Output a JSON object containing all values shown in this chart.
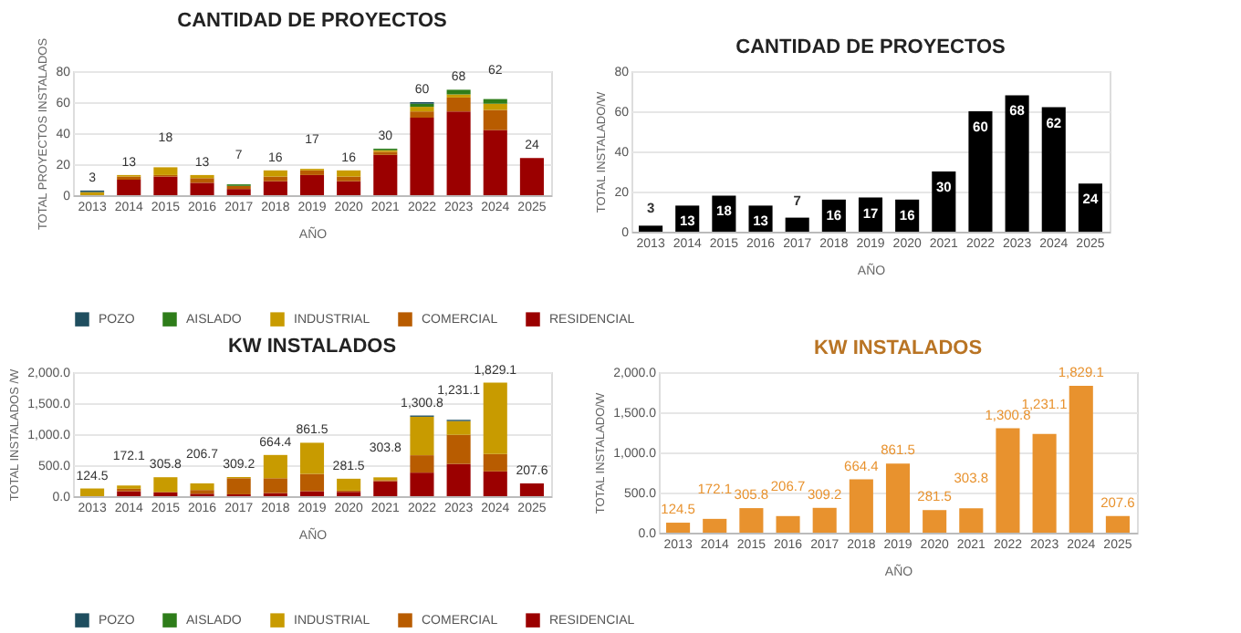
{
  "chart_data": [
    {
      "type": "bar",
      "title": "CANTIDAD DE PROYECTOS",
      "xlabel": "AÑO",
      "ylabel": "TOTAL PROYECTOS INSTALADOS",
      "stacked": true,
      "legend": "bottom",
      "grid": "y",
      "categories": [
        "2013",
        "2014",
        "2015",
        "2016",
        "2017",
        "2018",
        "2019",
        "2020",
        "2021",
        "2022",
        "2023",
        "2024",
        "2025"
      ],
      "ylim": [
        0,
        80
      ],
      "yticks": [
        0,
        20,
        40,
        60,
        80
      ],
      "series": [
        {
          "name": "RESIDENCIAL",
          "color": "#9b0000",
          "values": [
            null,
            10,
            12,
            8,
            4,
            9,
            13,
            9,
            26,
            50,
            54,
            42,
            24
          ]
        },
        {
          "name": "COMERCIAL",
          "color": "#b85c00",
          "values": [
            null,
            2,
            1,
            3,
            2,
            3,
            3,
            3,
            2,
            4,
            9,
            13,
            null
          ]
        },
        {
          "name": "INDUSTRIAL",
          "color": "#c89b00",
          "values": [
            2,
            1,
            5,
            2,
            null,
            4,
            1,
            4,
            1,
            3,
            2,
            4,
            null
          ]
        },
        {
          "name": "AISLADO",
          "color": "#2e7d1a",
          "values": [
            null,
            null,
            null,
            null,
            1,
            null,
            null,
            null,
            1,
            2,
            3,
            3,
            null
          ]
        },
        {
          "name": "POZO",
          "color": "#1f4e5f",
          "values": [
            1,
            null,
            null,
            null,
            null,
            null,
            null,
            null,
            null,
            1,
            null,
            null,
            null
          ]
        }
      ],
      "totals": [
        "3",
        "13",
        "18",
        "13",
        "7",
        "16",
        "17",
        "16",
        "30",
        "60",
        "68",
        "62",
        "24"
      ]
    },
    {
      "type": "bar",
      "title": "CANTIDAD DE PROYECTOS",
      "xlabel": "AÑO",
      "ylabel": "TOTAL INSTALADO/W",
      "grid": "y",
      "data_labels": true,
      "color": "#000000",
      "categories": [
        "2013",
        "2014",
        "2015",
        "2016",
        "2017",
        "2018",
        "2019",
        "2020",
        "2021",
        "2022",
        "2023",
        "2024",
        "2025"
      ],
      "ylim": [
        0,
        80
      ],
      "yticks": [
        0,
        20,
        40,
        60,
        80
      ],
      "values": [
        3,
        13,
        18,
        13,
        7,
        16,
        17,
        16,
        30,
        60,
        68,
        62,
        24
      ]
    },
    {
      "type": "bar",
      "title": "KW INSTALADOS",
      "xlabel": "AÑO",
      "ylabel": "TOTAL INSTALADOS /W",
      "stacked": true,
      "legend": "bottom",
      "grid": "y",
      "categories": [
        "2013",
        "2014",
        "2015",
        "2016",
        "2017",
        "2018",
        "2019",
        "2020",
        "2021",
        "2022",
        "2023",
        "2024",
        "2025"
      ],
      "ylim": [
        0,
        2000
      ],
      "yticks": [
        {
          "value": 0,
          "label": "0.0"
        },
        {
          "value": 500,
          "label": "500.0"
        },
        {
          "value": 1000,
          "label": "1,000.0"
        },
        {
          "value": 1500,
          "label": "1,500.0"
        },
        {
          "value": 2000,
          "label": "2,000.0"
        }
      ],
      "series": [
        {
          "name": "RESIDENCIAL",
          "color": "#9b0000",
          "values": [
            null,
            80,
            60,
            40,
            30,
            50,
            80,
            70,
            240,
            380,
            520,
            400,
            207.6
          ]
        },
        {
          "name": "COMERCIAL",
          "color": "#b85c00",
          "values": [
            null,
            40,
            10,
            60,
            260,
            240,
            280,
            20,
            20,
            280,
            470,
            280,
            null
          ]
        },
        {
          "name": "INDUSTRIAL",
          "color": "#c89b00",
          "values": [
            124.5,
            52.1,
            235.8,
            106.7,
            19.2,
            374.4,
            501.5,
            191.5,
            43.8,
            620.8,
            221.1,
            1149.1,
            null
          ]
        },
        {
          "name": "AISLADO",
          "color": "#2e7d1a",
          "values": [
            null,
            null,
            null,
            null,
            null,
            null,
            null,
            null,
            null,
            null,
            null,
            null,
            null
          ]
        },
        {
          "name": "POZO",
          "color": "#1f4e5f",
          "values": [
            null,
            null,
            null,
            null,
            null,
            null,
            null,
            null,
            null,
            20,
            20,
            null,
            null
          ]
        }
      ],
      "totals": [
        "124.5",
        "172.1",
        "305.8",
        "206.7",
        "309.2",
        "664.4",
        "861.5",
        "281.5",
        "303.8",
        "1,300.8",
        "1,231.1",
        "1,829.1",
        "207.6"
      ]
    },
    {
      "type": "bar",
      "title": "KW INSTALADOS",
      "xlabel": "AÑO",
      "ylabel": "TOTAL INSTALADO/W",
      "grid": "y",
      "color": "#e8922e",
      "categories": [
        "2013",
        "2014",
        "2015",
        "2016",
        "2017",
        "2018",
        "2019",
        "2020",
        "2021",
        "2022",
        "2023",
        "2024",
        "2025"
      ],
      "ylim": [
        0,
        2000
      ],
      "yticks": [
        {
          "value": 0,
          "label": "0.0"
        },
        {
          "value": 500,
          "label": "500.0"
        },
        {
          "value": 1000,
          "label": "1,000.0"
        },
        {
          "value": 1500,
          "label": "1,500.0"
        },
        {
          "value": 2000,
          "label": "2,000.0"
        }
      ],
      "values": [
        124.5,
        172.1,
        305.8,
        206.7,
        309.2,
        664.4,
        861.5,
        281.5,
        303.8,
        1300.8,
        1231.1,
        1829.1,
        207.6
      ],
      "value_labels": [
        "124.5",
        "172.1",
        "305.8",
        "206.7",
        "309.2",
        "664.4",
        "861.5",
        "281.5",
        "303.8",
        "1,300.8",
        "1,231.1",
        "1,829.1",
        "207.6"
      ]
    }
  ]
}
